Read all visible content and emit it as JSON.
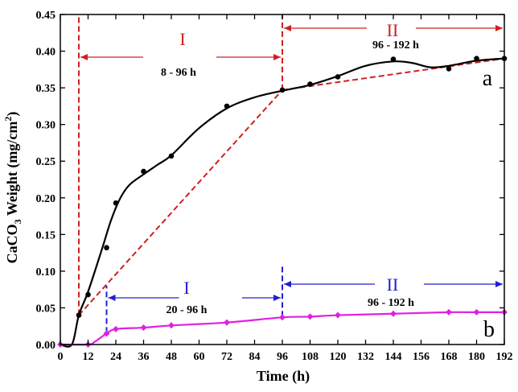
{
  "chart_data": {
    "type": "line",
    "xlabel": "Time (h)",
    "ylabel_main": "CaCO",
    "ylabel_sub": "3",
    "ylabel_tail": " Weight (mg/cm",
    "ylabel_sup": "2",
    "ylabel_end": ")",
    "xlim": [
      0,
      192
    ],
    "ylim": [
      0,
      0.45
    ],
    "xticks": [
      0,
      12,
      24,
      36,
      48,
      60,
      72,
      84,
      96,
      108,
      120,
      132,
      144,
      156,
      168,
      180,
      192
    ],
    "yticks": [
      0.0,
      0.05,
      0.1,
      0.15,
      0.2,
      0.25,
      0.3,
      0.35,
      0.4,
      0.45
    ],
    "series": [
      {
        "name": "a",
        "color": "#000000",
        "marker": "circle",
        "points": [
          [
            8,
            0.04
          ],
          [
            12,
            0.068
          ],
          [
            20,
            0.132
          ],
          [
            24,
            0.193
          ],
          [
            36,
            0.236
          ],
          [
            48,
            0.257
          ],
          [
            72,
            0.325
          ],
          [
            96,
            0.347
          ],
          [
            108,
            0.355
          ],
          [
            120,
            0.365
          ],
          [
            144,
            0.389
          ],
          [
            168,
            0.376
          ],
          [
            180,
            0.39
          ],
          [
            192,
            0.39
          ]
        ],
        "curve": [
          [
            0,
            0.0
          ],
          [
            5,
            0.0
          ],
          [
            8,
            0.04
          ],
          [
            12,
            0.072
          ],
          [
            18,
            0.13
          ],
          [
            22,
            0.17
          ],
          [
            26,
            0.2
          ],
          [
            30,
            0.218
          ],
          [
            36,
            0.232
          ],
          [
            42,
            0.245
          ],
          [
            48,
            0.258
          ],
          [
            60,
            0.295
          ],
          [
            72,
            0.322
          ],
          [
            84,
            0.337
          ],
          [
            96,
            0.346
          ],
          [
            108,
            0.354
          ],
          [
            120,
            0.366
          ],
          [
            132,
            0.38
          ],
          [
            144,
            0.386
          ],
          [
            152,
            0.384
          ],
          [
            160,
            0.378
          ],
          [
            168,
            0.38
          ],
          [
            180,
            0.387
          ],
          [
            192,
            0.39
          ]
        ]
      },
      {
        "name": "b",
        "color": "#e020e0",
        "marker": "diamond",
        "points": [
          [
            0,
            0.0
          ],
          [
            12,
            0.0
          ],
          [
            20,
            0.015
          ],
          [
            24,
            0.021
          ],
          [
            36,
            0.023
          ],
          [
            48,
            0.026
          ],
          [
            72,
            0.03
          ],
          [
            96,
            0.037
          ],
          [
            108,
            0.038
          ],
          [
            120,
            0.04
          ],
          [
            144,
            0.042
          ],
          [
            168,
            0.044
          ],
          [
            180,
            0.044
          ],
          [
            192,
            0.044
          ]
        ],
        "curve": [
          [
            0,
            0.0
          ],
          [
            12,
            0.0
          ],
          [
            15,
            0.004
          ],
          [
            20,
            0.015
          ],
          [
            24,
            0.021
          ],
          [
            36,
            0.023
          ],
          [
            48,
            0.026
          ],
          [
            72,
            0.03
          ],
          [
            96,
            0.037
          ],
          [
            108,
            0.038
          ],
          [
            120,
            0.04
          ],
          [
            144,
            0.042
          ],
          [
            168,
            0.044
          ],
          [
            180,
            0.044
          ],
          [
            192,
            0.044
          ]
        ]
      }
    ],
    "trend_lines": [
      {
        "color": "#d02020",
        "points": [
          [
            8,
            0.04
          ],
          [
            96,
            0.347
          ]
        ]
      },
      {
        "color": "#d02020",
        "points": [
          [
            96,
            0.347
          ],
          [
            192,
            0.39
          ]
        ]
      }
    ],
    "stage_markers": [
      {
        "color": "#d02020",
        "x": 8,
        "y_from": 0.04,
        "y_to": 0.45
      },
      {
        "color": "#d02020",
        "x": 96,
        "y_from": 0.347,
        "y_to": 0.45
      },
      {
        "color": "#2020d0",
        "x": 20,
        "y_from": 0.016,
        "y_to": 0.08
      },
      {
        "color": "#2020d0",
        "x": 96,
        "y_from": 0.038,
        "y_to": 0.11
      }
    ],
    "annotations": {
      "a_stage1": {
        "roman": "I",
        "range": "8 - 96 h",
        "color": "#d02020"
      },
      "a_stage2": {
        "roman": "II",
        "range": "96 - 192 h",
        "color": "#d02020"
      },
      "b_stage1": {
        "roman": "I",
        "range": "20 - 96 h",
        "color": "#2020d0"
      },
      "b_stage2": {
        "roman": "II",
        "range": "96 - 192 h",
        "color": "#2020d0"
      },
      "label_a": "a",
      "label_b": "b"
    }
  }
}
